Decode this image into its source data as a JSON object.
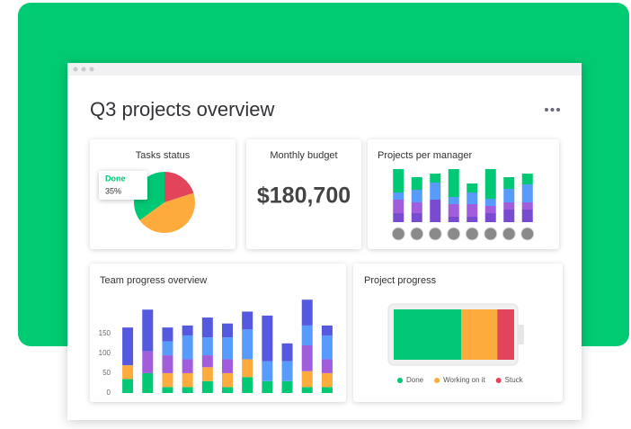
{
  "header": {
    "title": "Q3 projects overview"
  },
  "budget": {
    "title": "Monthly budget",
    "value": "$180,700"
  },
  "chart_data": [
    {
      "type": "pie",
      "title": "Tasks status",
      "categories": [
        "Done",
        null,
        null
      ],
      "values": [
        35,
        45,
        20
      ],
      "value_labels": [
        "35%",
        null,
        null
      ],
      "colors": [
        "#00c875",
        "#fdab3d",
        "#e2445c"
      ]
    },
    {
      "type": "stacked_bar",
      "title": "Projects per manager",
      "categories": [
        null,
        null,
        null,
        null,
        null,
        null,
        null,
        null
      ],
      "ylim": [
        0,
        60
      ],
      "series": [
        {
          "color": "#784bd1",
          "values": [
            10,
            10,
            25,
            6,
            6,
            10,
            14,
            14
          ]
        },
        {
          "color": "#a25ddc",
          "values": [
            15,
            12,
            0,
            14,
            14,
            8,
            8,
            8
          ]
        },
        {
          "color": "#579bfc",
          "values": [
            8,
            14,
            19,
            8,
            13,
            8,
            15,
            20
          ]
        },
        {
          "color": "#00c875",
          "values": [
            26,
            14,
            10,
            31,
            10,
            33,
            13,
            12
          ]
        }
      ]
    },
    {
      "type": "stacked_bar",
      "title": "Team progress overview",
      "categories": [
        null,
        null,
        null,
        null,
        null,
        null,
        null,
        null,
        null,
        null,
        null
      ],
      "ylim": [
        0,
        240
      ],
      "yticks": [
        0,
        50,
        100,
        150
      ],
      "series": [
        {
          "color": "#00c875",
          "values": [
            35,
            50,
            15,
            15,
            30,
            15,
            40,
            30,
            30,
            15,
            15
          ]
        },
        {
          "color": "#fdab3d",
          "values": [
            35,
            0,
            35,
            35,
            35,
            35,
            45,
            0,
            0,
            40,
            35
          ]
        },
        {
          "color": "#a25ddc",
          "values": [
            0,
            55,
            45,
            35,
            30,
            35,
            0,
            0,
            0,
            65,
            35
          ]
        },
        {
          "color": "#579bfc",
          "values": [
            0,
            0,
            35,
            60,
            45,
            55,
            75,
            50,
            50,
            50,
            60
          ]
        },
        {
          "color": "#5559df",
          "values": [
            95,
            105,
            35,
            25,
            50,
            35,
            45,
            115,
            45,
            65,
            25
          ]
        }
      ]
    },
    {
      "type": "horizontal_stacked_bar",
      "title": "Project progress",
      "xlim": [
        0,
        100
      ],
      "legend": "bottom",
      "series": [
        {
          "name": "Done",
          "color": "#00c875",
          "values": [
            56
          ]
        },
        {
          "name": "Working on it",
          "color": "#fdab3d",
          "values": [
            30
          ]
        },
        {
          "name": "Stuck",
          "color": "#e2445c",
          "values": [
            14
          ]
        }
      ]
    }
  ]
}
